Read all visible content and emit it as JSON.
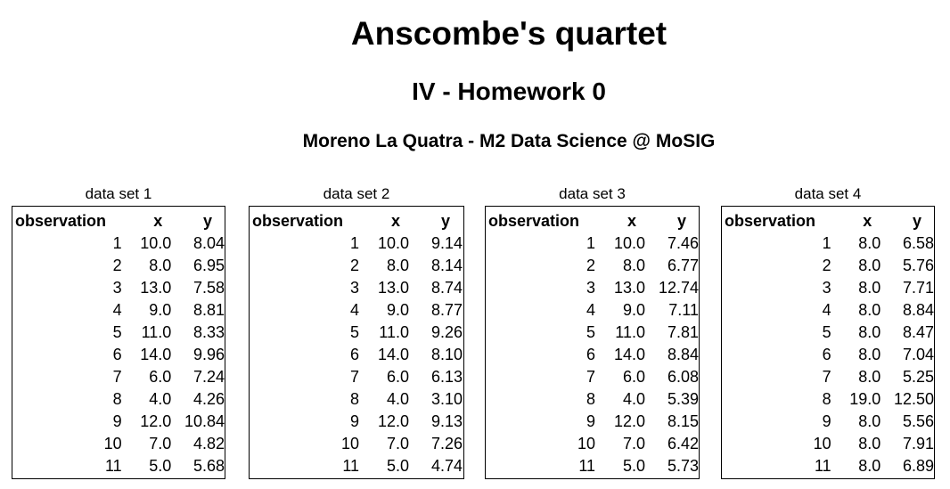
{
  "header": {
    "title": "Anscombe's quartet",
    "subtitle": "IV - Homework 0",
    "author": "Moreno La Quatra - M2 Data Science @ MoSIG"
  },
  "columns": {
    "observation": "observation",
    "x": "x",
    "y": "y"
  },
  "datasets": [
    {
      "caption": "data set 1",
      "rows": [
        {
          "obs": "1",
          "x": "10.0",
          "y": "8.04"
        },
        {
          "obs": "2",
          "x": "8.0",
          "y": "6.95"
        },
        {
          "obs": "3",
          "x": "13.0",
          "y": "7.58"
        },
        {
          "obs": "4",
          "x": "9.0",
          "y": "8.81"
        },
        {
          "obs": "5",
          "x": "11.0",
          "y": "8.33"
        },
        {
          "obs": "6",
          "x": "14.0",
          "y": "9.96"
        },
        {
          "obs": "7",
          "x": "6.0",
          "y": "7.24"
        },
        {
          "obs": "8",
          "x": "4.0",
          "y": "4.26"
        },
        {
          "obs": "9",
          "x": "12.0",
          "y": "10.84"
        },
        {
          "obs": "10",
          "x": "7.0",
          "y": "4.82"
        },
        {
          "obs": "11",
          "x": "5.0",
          "y": "5.68"
        }
      ]
    },
    {
      "caption": "data set 2",
      "rows": [
        {
          "obs": "1",
          "x": "10.0",
          "y": "9.14"
        },
        {
          "obs": "2",
          "x": "8.0",
          "y": "8.14"
        },
        {
          "obs": "3",
          "x": "13.0",
          "y": "8.74"
        },
        {
          "obs": "4",
          "x": "9.0",
          "y": "8.77"
        },
        {
          "obs": "5",
          "x": "11.0",
          "y": "9.26"
        },
        {
          "obs": "6",
          "x": "14.0",
          "y": "8.10"
        },
        {
          "obs": "7",
          "x": "6.0",
          "y": "6.13"
        },
        {
          "obs": "8",
          "x": "4.0",
          "y": "3.10"
        },
        {
          "obs": "9",
          "x": "12.0",
          "y": "9.13"
        },
        {
          "obs": "10",
          "x": "7.0",
          "y": "7.26"
        },
        {
          "obs": "11",
          "x": "5.0",
          "y": "4.74"
        }
      ]
    },
    {
      "caption": "data set 3",
      "rows": [
        {
          "obs": "1",
          "x": "10.0",
          "y": "7.46"
        },
        {
          "obs": "2",
          "x": "8.0",
          "y": "6.77"
        },
        {
          "obs": "3",
          "x": "13.0",
          "y": "12.74"
        },
        {
          "obs": "4",
          "x": "9.0",
          "y": "7.11"
        },
        {
          "obs": "5",
          "x": "11.0",
          "y": "7.81"
        },
        {
          "obs": "6",
          "x": "14.0",
          "y": "8.84"
        },
        {
          "obs": "7",
          "x": "6.0",
          "y": "6.08"
        },
        {
          "obs": "8",
          "x": "4.0",
          "y": "5.39"
        },
        {
          "obs": "9",
          "x": "12.0",
          "y": "8.15"
        },
        {
          "obs": "10",
          "x": "7.0",
          "y": "6.42"
        },
        {
          "obs": "11",
          "x": "5.0",
          "y": "5.73"
        }
      ]
    },
    {
      "caption": "data set 4",
      "rows": [
        {
          "obs": "1",
          "x": "8.0",
          "y": "6.58"
        },
        {
          "obs": "2",
          "x": "8.0",
          "y": "5.76"
        },
        {
          "obs": "3",
          "x": "8.0",
          "y": "7.71"
        },
        {
          "obs": "4",
          "x": "8.0",
          "y": "8.84"
        },
        {
          "obs": "5",
          "x": "8.0",
          "y": "8.47"
        },
        {
          "obs": "6",
          "x": "8.0",
          "y": "7.04"
        },
        {
          "obs": "7",
          "x": "8.0",
          "y": "5.25"
        },
        {
          "obs": "8",
          "x": "19.0",
          "y": "12.50"
        },
        {
          "obs": "9",
          "x": "8.0",
          "y": "5.56"
        },
        {
          "obs": "10",
          "x": "8.0",
          "y": "7.91"
        },
        {
          "obs": "11",
          "x": "8.0",
          "y": "6.89"
        }
      ]
    }
  ]
}
